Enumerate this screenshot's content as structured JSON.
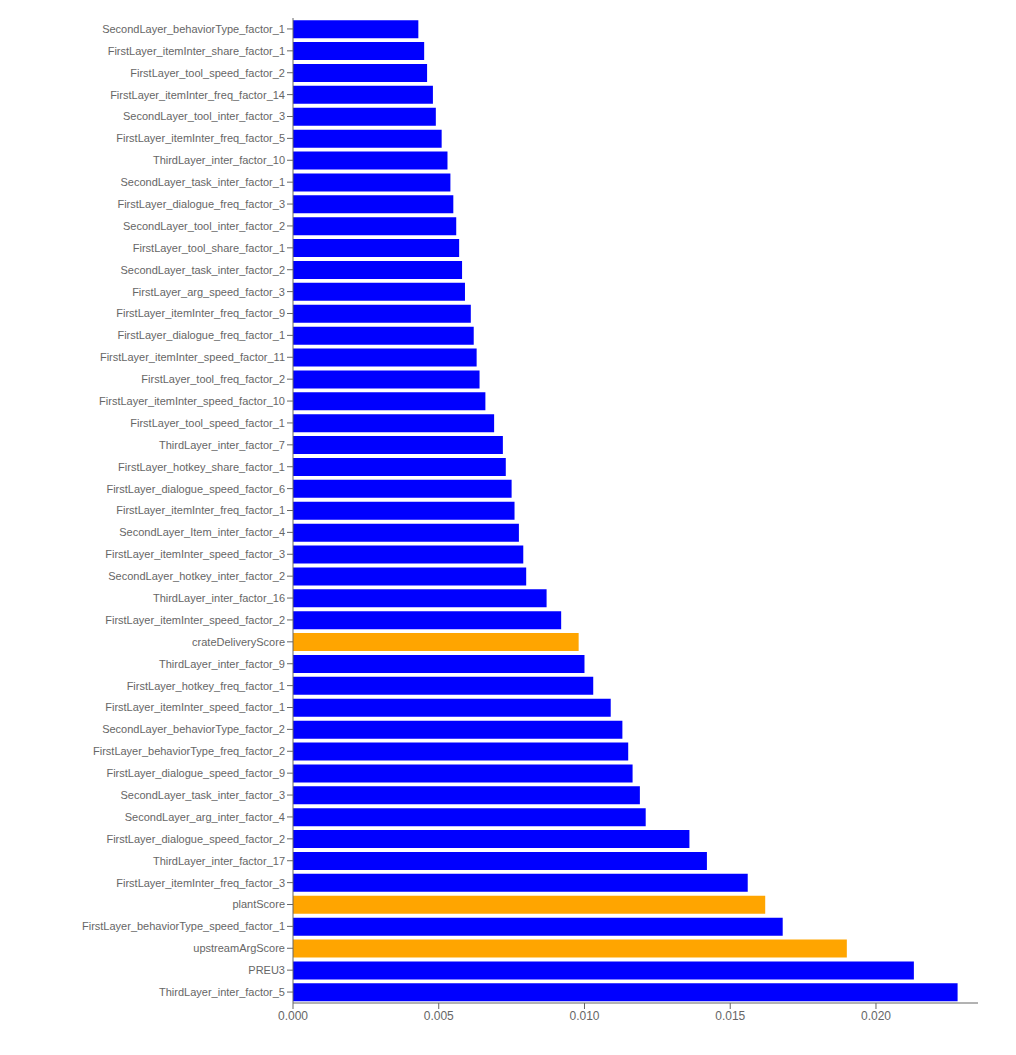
{
  "chart_data": {
    "type": "bar",
    "orientation": "horizontal",
    "categories": [
      "ThirdLayer_inter_factor_5",
      "PREU3",
      "upstreamArgScore",
      "FirstLayer_behaviorType_speed_factor_1",
      "plantScore",
      "FirstLayer_itemInter_freq_factor_3",
      "ThirdLayer_inter_factor_17",
      "FirstLayer_dialogue_speed_factor_2",
      "SecondLayer_arg_inter_factor_4",
      "SecondLayer_task_inter_factor_3",
      "FirstLayer_dialogue_speed_factor_9",
      "FirstLayer_behaviorType_freq_factor_2",
      "SecondLayer_behaviorType_factor_2",
      "FirstLayer_itemInter_speed_factor_1",
      "FirstLayer_hotkey_freq_factor_1",
      "ThirdLayer_inter_factor_9",
      "crateDeliveryScore",
      "FirstLayer_itemInter_speed_factor_2",
      "ThirdLayer_inter_factor_16",
      "SecondLayer_hotkey_inter_factor_2",
      "FirstLayer_itemInter_speed_factor_3",
      "SecondLayer_Item_inter_factor_4",
      "FirstLayer_itemInter_freq_factor_1",
      "FirstLayer_dialogue_speed_factor_6",
      "FirstLayer_hotkey_share_factor_1",
      "ThirdLayer_inter_factor_7",
      "FirstLayer_tool_speed_factor_1",
      "FirstLayer_itemInter_speed_factor_10",
      "FirstLayer_tool_freq_factor_2",
      "FirstLayer_itemInter_speed_factor_11",
      "FirstLayer_dialogue_freq_factor_1",
      "FirstLayer_itemInter_freq_factor_9",
      "FirstLayer_arg_speed_factor_3",
      "SecondLayer_task_inter_factor_2",
      "FirstLayer_tool_share_factor_1",
      "SecondLayer_tool_inter_factor_2",
      "FirstLayer_dialogue_freq_factor_3",
      "SecondLayer_task_inter_factor_1",
      "ThirdLayer_inter_factor_10",
      "FirstLayer_itemInter_freq_factor_5",
      "SecondLayer_tool_inter_factor_3",
      "FirstLayer_itemInter_freq_factor_14",
      "FirstLayer_tool_speed_factor_2",
      "FirstLayer_itemInter_share_factor_1",
      "SecondLayer_behaviorType_factor_1"
    ],
    "values": [
      0.0228,
      0.0213,
      0.019,
      0.0168,
      0.0162,
      0.0156,
      0.0142,
      0.0136,
      0.0121,
      0.0119,
      0.01165,
      0.0115,
      0.0113,
      0.0109,
      0.0103,
      0.01,
      0.0098,
      0.0092,
      0.0087,
      0.008,
      0.0079,
      0.00775,
      0.0076,
      0.0075,
      0.0073,
      0.0072,
      0.0069,
      0.0066,
      0.0064,
      0.0063,
      0.0062,
      0.0061,
      0.0059,
      0.0058,
      0.0057,
      0.0056,
      0.0055,
      0.0054,
      0.0053,
      0.0051,
      0.0049,
      0.0048,
      0.0046,
      0.0045,
      0.0043
    ],
    "colors": [
      "#0000ff",
      "#0000ff",
      "#ffa500",
      "#0000ff",
      "#ffa500",
      "#0000ff",
      "#0000ff",
      "#0000ff",
      "#0000ff",
      "#0000ff",
      "#0000ff",
      "#0000ff",
      "#0000ff",
      "#0000ff",
      "#0000ff",
      "#0000ff",
      "#ffa500",
      "#0000ff",
      "#0000ff",
      "#0000ff",
      "#0000ff",
      "#0000ff",
      "#0000ff",
      "#0000ff",
      "#0000ff",
      "#0000ff",
      "#0000ff",
      "#0000ff",
      "#0000ff",
      "#0000ff",
      "#0000ff",
      "#0000ff",
      "#0000ff",
      "#0000ff",
      "#0000ff",
      "#0000ff",
      "#0000ff",
      "#0000ff",
      "#0000ff",
      "#0000ff",
      "#0000ff",
      "#0000ff",
      "#0000ff",
      "#0000ff",
      "#0000ff"
    ],
    "xlim": [
      0.0,
      0.0235
    ],
    "xticks": [
      {
        "value": 0,
        "label": "0.000"
      },
      0.005,
      {
        "value": 0.01,
        "label": "0.010"
      },
      0.015,
      {
        "value": 0.02,
        "label": "0.020"
      }
    ],
    "grid": false
  }
}
